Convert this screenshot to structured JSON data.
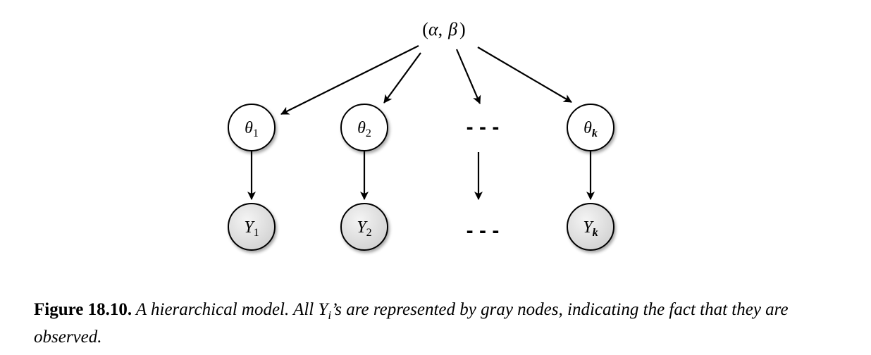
{
  "diagram": {
    "root": {
      "open": "(",
      "alpha": "α",
      "comma": ",",
      "beta": "β",
      "close": ")"
    },
    "theta_nodes": [
      {
        "base": "θ",
        "sub": "1"
      },
      {
        "base": "θ",
        "sub": "2"
      },
      {
        "base": "θ",
        "sub": "k"
      }
    ],
    "y_nodes": [
      {
        "base": "Y",
        "sub": "1"
      },
      {
        "base": "Y",
        "sub": "2"
      },
      {
        "base": "Y",
        "sub": "k"
      }
    ],
    "ellipsis_top": "- - -",
    "ellipsis_bottom": "- - -",
    "colors": {
      "observed_fill": "#d9d9d9",
      "latent_fill": "#ffffff",
      "stroke": "#000000"
    }
  },
  "caption": {
    "label": "Figure 18.10.",
    "text_before": " A hierarchical model. All ",
    "var": "Y",
    "var_sub": "i",
    "text_after": "’s are represented by gray nodes, indicating the fact that they are observed."
  }
}
